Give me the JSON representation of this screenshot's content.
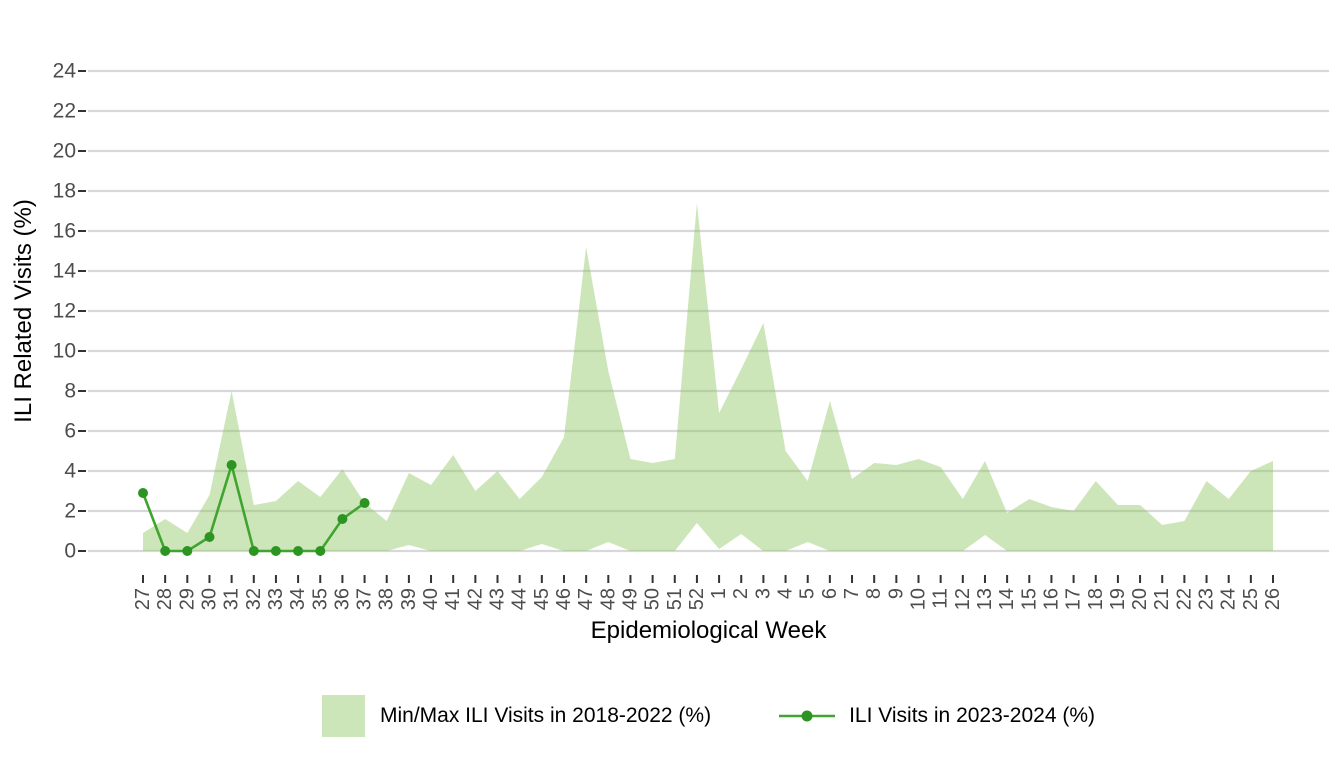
{
  "figure": {
    "background": "#ffffff"
  },
  "colors": {
    "ribbon_fill": "rgba(141,199,100,0.45)",
    "line": "#40a52e",
    "point": "#2c9422",
    "gridline": "#d8d8d8",
    "tick": "#333333",
    "tick_label": "#4d4d4d",
    "axis_title": "#000000"
  },
  "y_axis": {
    "title": "ILI Related Visits (%)",
    "tick_values": [
      0,
      2,
      4,
      6,
      8,
      10,
      12,
      14,
      16,
      18,
      20,
      22,
      24
    ]
  },
  "x_axis": {
    "title": "Epidemiological Week"
  },
  "legend": {
    "ribbon_label": "Min/Max ILI Visits in 2018-2022 (%)",
    "line_label": "ILI Visits in 2023-2024 (%)"
  },
  "chart_data": {
    "type": "area",
    "title": "",
    "xlabel": "Epidemiological Week",
    "ylabel": "ILI Related Visits (%)",
    "ylim": [
      0,
      24
    ],
    "grid": "horizontal-only",
    "legend_position": "bottom",
    "x": [
      "27",
      "28",
      "29",
      "30",
      "31",
      "32",
      "33",
      "34",
      "35",
      "36",
      "37",
      "38",
      "39",
      "40",
      "41",
      "42",
      "43",
      "44",
      "45",
      "46",
      "47",
      "48",
      "49",
      "50",
      "51",
      "52",
      "1",
      "2",
      "3",
      "4",
      "5",
      "6",
      "7",
      "8",
      "9",
      "10",
      "11",
      "12",
      "13",
      "14",
      "15",
      "16",
      "17",
      "18",
      "19",
      "20",
      "21",
      "22",
      "23",
      "24",
      "25",
      "26"
    ],
    "series": [
      {
        "name": "Min/Max ILI Visits in 2018-2022 (%)",
        "type": "ribbon",
        "max": [
          0.9,
          1.6,
          0.9,
          2.8,
          8.0,
          2.3,
          2.5,
          3.5,
          2.7,
          4.1,
          2.4,
          1.5,
          3.9,
          3.3,
          4.8,
          3.0,
          4.0,
          2.6,
          3.7,
          5.7,
          15.2,
          9.0,
          4.6,
          4.4,
          4.6,
          17.4,
          6.9,
          9.1,
          11.4,
          5.0,
          3.5,
          7.5,
          3.6,
          4.4,
          4.3,
          4.6,
          4.2,
          2.6,
          4.5,
          1.9,
          2.6,
          2.2,
          2.0,
          3.5,
          2.3,
          2.3,
          1.3,
          1.5,
          3.5,
          2.6,
          4.0,
          4.5
        ],
        "min": [
          0,
          0,
          0,
          0,
          0,
          0,
          0,
          0,
          0,
          0,
          0,
          0,
          0.3,
          0,
          0,
          0,
          0,
          0,
          0.35,
          0,
          0,
          0.45,
          0,
          0,
          0,
          1.4,
          0.1,
          0.85,
          0,
          0,
          0.45,
          0,
          0,
          0,
          0,
          0,
          0,
          0,
          0.8,
          0,
          0,
          0,
          0,
          0,
          0,
          0,
          0,
          0,
          0,
          0,
          0,
          0
        ]
      },
      {
        "name": "ILI Visits in 2023-2024 (%)",
        "type": "line-points",
        "values": [
          2.9,
          0,
          0,
          0.7,
          4.3,
          0,
          0,
          0,
          0,
          1.6,
          2.4,
          null,
          null,
          null,
          null,
          null,
          null,
          null,
          null,
          null,
          null,
          null,
          null,
          null,
          null,
          null,
          null,
          null,
          null,
          null,
          null,
          null,
          null,
          null,
          null,
          null,
          null,
          null,
          null,
          null,
          null,
          null,
          null,
          null,
          null,
          null,
          null,
          null,
          null,
          null,
          null,
          null
        ]
      }
    ]
  }
}
